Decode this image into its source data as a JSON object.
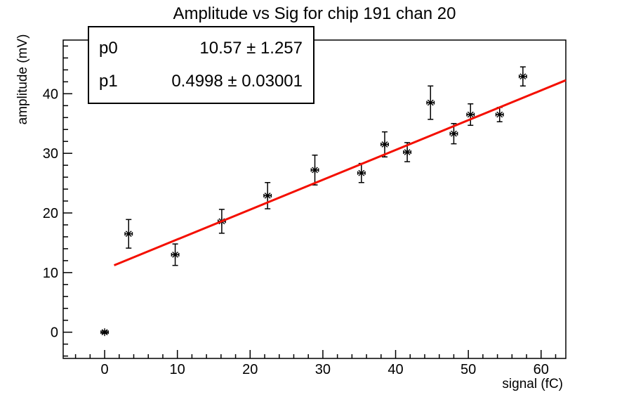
{
  "title": "Amplitude vs Sig for chip 191 chan 20",
  "stats_box": {
    "rows": [
      {
        "param": "p0",
        "value": "10.57 ± 1.257"
      },
      {
        "param": "p1",
        "value": "0.4998 ± 0.03001"
      }
    ]
  },
  "chart_data": {
    "type": "scatter",
    "title": "Amplitude vs Sig for chip 191 chan 20",
    "xlabel": "signal (fC)",
    "ylabel": "amplitude (mV)",
    "xlim": [
      -5.7,
      63.4
    ],
    "ylim": [
      -4.4,
      49.0
    ],
    "x_ticks": [
      0,
      10,
      20,
      30,
      40,
      50,
      60
    ],
    "y_ticks": [
      0,
      10,
      20,
      30,
      40
    ],
    "minor_tick_step": 2,
    "grid": false,
    "legend": "none",
    "marker": "asterisk",
    "marker_color": "#000000",
    "axis_color": "#000000",
    "points": [
      {
        "x": 0,
        "y": 0,
        "ey": 0.2
      },
      {
        "x": 3.3,
        "y": 16.5,
        "ey": 2.4
      },
      {
        "x": 9.7,
        "y": 13.0,
        "ey": 1.8
      },
      {
        "x": 16.1,
        "y": 18.6,
        "ey": 2.0
      },
      {
        "x": 22.4,
        "y": 22.9,
        "ey": 2.2
      },
      {
        "x": 28.9,
        "y": 27.2,
        "ey": 2.5
      },
      {
        "x": 35.3,
        "y": 26.7,
        "ey": 1.6
      },
      {
        "x": 38.5,
        "y": 31.5,
        "ey": 2.1
      },
      {
        "x": 41.6,
        "y": 30.2,
        "ey": 1.6
      },
      {
        "x": 44.8,
        "y": 38.5,
        "ey": 2.8
      },
      {
        "x": 48.0,
        "y": 33.3,
        "ey": 1.7
      },
      {
        "x": 50.3,
        "y": 36.5,
        "ey": 1.8
      },
      {
        "x": 54.3,
        "y": 36.5,
        "ey": 1.2
      },
      {
        "x": 57.5,
        "y": 42.9,
        "ey": 1.6
      }
    ],
    "x_error": 0.5,
    "fit": {
      "type": "linear",
      "p0": 10.57,
      "p0_err": 1.257,
      "p1": 0.4998,
      "p1_err": 0.03001,
      "x_range": [
        1.3,
        63.4
      ],
      "color": "#f40f00"
    }
  }
}
